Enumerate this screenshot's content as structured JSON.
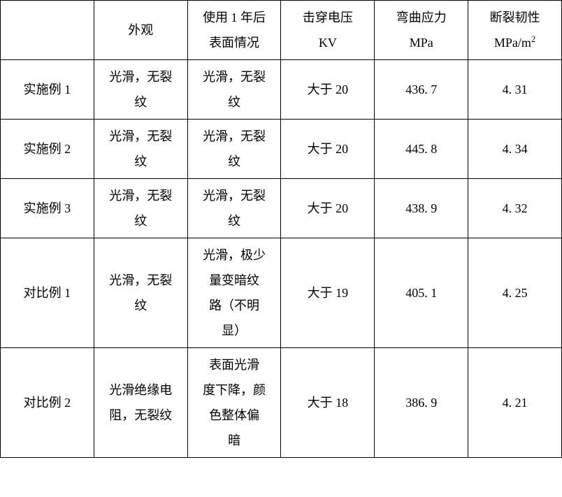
{
  "table": {
    "background_color": "#ffffff",
    "border_color": "#000000",
    "text_color": "#000000",
    "font_family": "SimSun",
    "font_size_pt": 14,
    "columns": [
      {
        "key": "name",
        "header_l1": "",
        "header_l2": ""
      },
      {
        "key": "appear",
        "header_l1": "外观",
        "header_l2": ""
      },
      {
        "key": "after1y",
        "header_l1": "使用 1 年后",
        "header_l2": "表面情况"
      },
      {
        "key": "bdv",
        "header_l1": "击穿电压",
        "header_l2": "KV"
      },
      {
        "key": "bend",
        "header_l1": "弯曲应力",
        "header_l2": "MPa"
      },
      {
        "key": "tough",
        "header_l1": "断裂韧性",
        "header_l2": "MPa/m"
      }
    ],
    "tough_exp": "2",
    "rows": [
      {
        "name": "实施例 1",
        "appear_l1": "光滑，无裂",
        "appear_l2": "纹",
        "after_l1": "光滑，无裂",
        "after_l2": "纹",
        "after_l3": "",
        "after_l4": "",
        "bdv": "大于 20",
        "bend": "436. 7",
        "tough": "4. 31",
        "row_class": "r-short"
      },
      {
        "name": "实施例 2",
        "appear_l1": "光滑，无裂",
        "appear_l2": "纹",
        "after_l1": "光滑，无裂",
        "after_l2": "纹",
        "after_l3": "",
        "after_l4": "",
        "bdv": "大于 20",
        "bend": "445. 8",
        "tough": "4. 34",
        "row_class": "r-short"
      },
      {
        "name": "实施例 3",
        "appear_l1": "光滑，无裂",
        "appear_l2": "纹",
        "after_l1": "光滑，无裂",
        "after_l2": "纹",
        "after_l3": "",
        "after_l4": "",
        "bdv": "大于 20",
        "bend": "438. 9",
        "tough": "4. 32",
        "row_class": "r-short"
      },
      {
        "name": "对比例 1",
        "appear_l1": "光滑，无裂",
        "appear_l2": "纹",
        "after_l1": "光滑，极少",
        "after_l2": "量变暗纹",
        "after_l3": "路（不明",
        "after_l4": "显）",
        "bdv": "大于 19",
        "bend": "405. 1",
        "tough": "4. 25",
        "row_class": "r-tall"
      },
      {
        "name": "对比例 2",
        "appear_l1": "光滑绝缘电",
        "appear_l2": "阻，无裂纹",
        "after_l1": "表面光滑",
        "after_l2": "度下降，颜",
        "after_l3": "色整体偏",
        "after_l4": "暗",
        "bdv": "大于 18",
        "bend": "386. 9",
        "tough": "4. 21",
        "row_class": "r-tall"
      }
    ]
  }
}
